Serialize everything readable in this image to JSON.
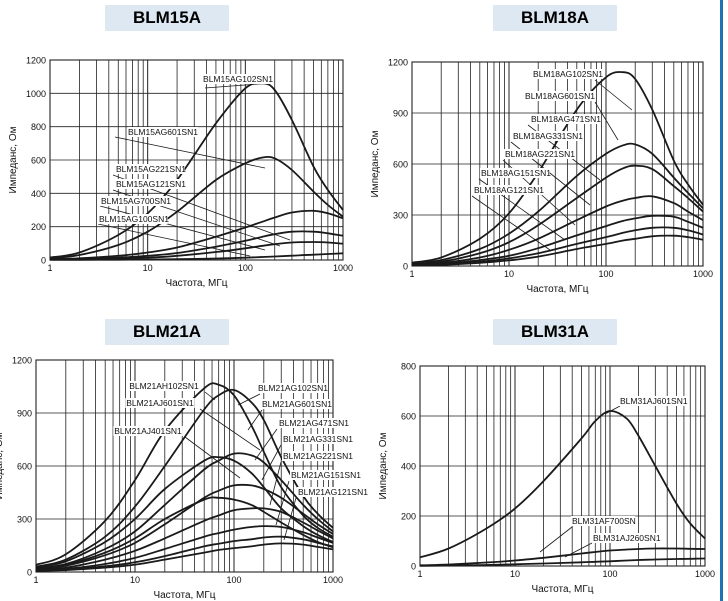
{
  "colors": {
    "tab_bg": "#dde8f2",
    "curve": "#1a1a1a",
    "grid": "#222222",
    "edge_bar": "#1e74b3"
  },
  "charts": [
    {
      "tab": "BLM15A",
      "ylabel": "Импеданс, Ом",
      "xlabel": "Частота, МГц",
      "yticks": [
        "0",
        "200",
        "400",
        "600",
        "800",
        "1000",
        "1200"
      ],
      "xticks": [
        "1",
        "10",
        "100",
        "1000"
      ],
      "labels": [
        "BLM15AG102SN1",
        "BLM15AG601SN1",
        "BLM15AG221SN1",
        "BLM15AG121SN1",
        "BLM15AG700SN1",
        "BLM15AG100SN1"
      ]
    },
    {
      "tab": "BLM18A",
      "ylabel": "Импеданс, Ом",
      "xlabel": "Частота, МГц",
      "yticks": [
        "0",
        "300",
        "600",
        "900",
        "1200"
      ],
      "xticks": [
        "1",
        "10",
        "100",
        "1000"
      ],
      "labels": [
        "BLM18AG102SN1",
        "BLM18AG601SN1",
        "BLM18AG471SN1",
        "BLM18AG331SN1",
        "BLM18AG221SN1",
        "BLM18AG151SN1",
        "BLM18AG121SN1"
      ]
    },
    {
      "tab": "BLM21A",
      "ylabel": "Импеданс, Ом",
      "xlabel": "Частота, МГц",
      "yticks": [
        "0",
        "300",
        "600",
        "900",
        "1200"
      ],
      "xticks": [
        "1",
        "10",
        "100",
        "1000"
      ],
      "labels": [
        "BLM21AH102SN1",
        "BLM21AJ601SN1",
        "BLM21AJ401SN1",
        "BLM21AG102SN1",
        "BLM21AG601SN1",
        "BLM21AG471SN1",
        "BLM21AG331SN1",
        "BLM21AG221SN1",
        "BLM21AG151SN1",
        "BLM21AG121SN1"
      ]
    },
    {
      "tab": "BLM31A",
      "ylabel": "Импеданс, Ом",
      "xlabel": "Частота, МГц",
      "yticks": [
        "0",
        "200",
        "400",
        "600",
        "800"
      ],
      "xticks": [
        "1",
        "10",
        "100",
        "1000"
      ],
      "labels": [
        "BLM31AJ601SN1",
        "BLM31AF700SN",
        "BLM31AJ260SN1"
      ]
    }
  ],
  "chart_data": [
    {
      "type": "line",
      "title": "BLM15A",
      "xscale": "log",
      "xlim": [
        1,
        1000
      ],
      "ylim": [
        0,
        1200
      ],
      "xlabel": "Частота, МГц",
      "ylabel": "Импеданс, Ом",
      "grid": true,
      "x": [
        1,
        2,
        5,
        10,
        20,
        50,
        100,
        150,
        200,
        300,
        500,
        700,
        1000
      ],
      "series": [
        {
          "name": "BLM15AG102SN1",
          "values": [
            15,
            45,
            150,
            280,
            480,
            820,
            1030,
            1060,
            1020,
            840,
            560,
            420,
            300
          ]
        },
        {
          "name": "BLM15AG601SN1",
          "values": [
            10,
            30,
            90,
            170,
            290,
            480,
            580,
            615,
            610,
            540,
            410,
            330,
            260
          ]
        },
        {
          "name": "BLM15AG221SN1",
          "values": [
            5,
            10,
            25,
            45,
            75,
            140,
            195,
            230,
            255,
            285,
            295,
            280,
            250
          ]
        },
        {
          "name": "BLM15AG121SN1",
          "values": [
            4,
            6,
            14,
            25,
            42,
            80,
            115,
            140,
            155,
            170,
            170,
            160,
            145
          ]
        },
        {
          "name": "BLM15AG700SN1",
          "values": [
            3,
            4,
            8,
            14,
            25,
            48,
            70,
            85,
            95,
            105,
            108,
            105,
            98
          ]
        },
        {
          "name": "BLM15AG100SN1",
          "values": [
            1,
            1,
            2,
            3,
            5,
            9,
            14,
            18,
            21,
            26,
            32,
            36,
            40
          ]
        }
      ]
    },
    {
      "type": "line",
      "title": "BLM18A",
      "xscale": "log",
      "xlim": [
        1,
        1000
      ],
      "ylim": [
        0,
        1200
      ],
      "xlabel": "Частота, МГц",
      "ylabel": "Импеданс, Ом",
      "grid": true,
      "x": [
        1,
        2,
        5,
        10,
        20,
        50,
        100,
        150,
        200,
        300,
        500,
        700,
        1000
      ],
      "series": [
        {
          "name": "BLM18AG102SN1",
          "values": [
            20,
            50,
            160,
            310,
            550,
            920,
            1110,
            1140,
            1100,
            920,
            620,
            480,
            360
          ]
        },
        {
          "name": "BLM18AG601SN1",
          "values": [
            15,
            35,
            100,
            190,
            320,
            530,
            660,
            710,
            715,
            660,
            520,
            430,
            340
          ]
        },
        {
          "name": "BLM18AG471SN1",
          "values": [
            12,
            25,
            75,
            140,
            240,
            400,
            520,
            575,
            590,
            570,
            470,
            400,
            320
          ]
        },
        {
          "name": "BLM18AG331SN1",
          "values": [
            10,
            18,
            50,
            95,
            160,
            270,
            350,
            385,
            400,
            410,
            370,
            320,
            270
          ]
        },
        {
          "name": "BLM18AG221SN1",
          "values": [
            8,
            12,
            35,
            60,
            105,
            180,
            235,
            265,
            280,
            295,
            290,
            260,
            225
          ]
        },
        {
          "name": "BLM18AG151SN1",
          "values": [
            6,
            9,
            25,
            45,
            75,
            130,
            170,
            195,
            210,
            225,
            225,
            210,
            185
          ]
        },
        {
          "name": "BLM18AG121SN1",
          "values": [
            5,
            7,
            18,
            33,
            55,
            100,
            130,
            150,
            160,
            175,
            178,
            170,
            155
          ]
        }
      ]
    },
    {
      "type": "line",
      "title": "BLM21A",
      "xscale": "log",
      "xlim": [
        1,
        1000
      ],
      "ylim": [
        0,
        1200
      ],
      "xlabel": "Частота, МГц",
      "ylabel": "Импеданс, Ом",
      "grid": true,
      "x": [
        1,
        2,
        5,
        10,
        20,
        50,
        70,
        100,
        150,
        200,
        300,
        500,
        700,
        1000
      ],
      "series": [
        {
          "name": "BLM21AH102SN1",
          "values": [
            40,
            100,
            290,
            520,
            800,
            1040,
            1060,
            1000,
            830,
            680,
            480,
            320,
            250,
            200
          ]
        },
        {
          "name": "BLM21AG102SN1",
          "values": [
            30,
            70,
            200,
            370,
            600,
            920,
            1000,
            1030,
            960,
            860,
            650,
            430,
            330,
            250
          ]
        },
        {
          "name": "BLM21AJ601SN1",
          "values": [
            25,
            60,
            170,
            300,
            470,
            630,
            650,
            630,
            560,
            480,
            360,
            260,
            210,
            170
          ]
        },
        {
          "name": "BLM21AG601SN1",
          "values": [
            20,
            45,
            130,
            230,
            380,
            580,
            630,
            670,
            660,
            620,
            520,
            380,
            300,
            230
          ]
        },
        {
          "name": "BLM21AJ401SN1",
          "values": [
            18,
            40,
            110,
            190,
            300,
            410,
            420,
            410,
            380,
            340,
            280,
            210,
            170,
            140
          ]
        },
        {
          "name": "BLM21AG471SN1",
          "values": [
            15,
            35,
            95,
            165,
            270,
            420,
            460,
            490,
            490,
            470,
            420,
            330,
            270,
            215
          ]
        },
        {
          "name": "BLM21AG331SN1",
          "values": [
            12,
            25,
            70,
            120,
            190,
            290,
            320,
            350,
            360,
            360,
            340,
            280,
            235,
            190
          ]
        },
        {
          "name": "BLM21AG221SN1",
          "values": [
            10,
            18,
            45,
            80,
            130,
            200,
            220,
            240,
            255,
            260,
            255,
            225,
            195,
            165
          ]
        },
        {
          "name": "BLM21AG151SN1",
          "values": [
            8,
            14,
            32,
            55,
            90,
            145,
            160,
            175,
            185,
            195,
            200,
            185,
            165,
            145
          ]
        },
        {
          "name": "BLM21AG121SN1",
          "values": [
            7,
            11,
            25,
            42,
            70,
            110,
            125,
            135,
            145,
            155,
            162,
            155,
            142,
            128
          ]
        }
      ]
    },
    {
      "type": "line",
      "title": "BLM31A",
      "xscale": "log",
      "xlim": [
        1,
        1000
      ],
      "ylim": [
        0,
        800
      ],
      "xlabel": "Частота, МГц",
      "ylabel": "Импеданс, Ом",
      "grid": true,
      "x": [
        1,
        2,
        5,
        10,
        20,
        50,
        70,
        100,
        150,
        200,
        300,
        500,
        700,
        1000
      ],
      "series": [
        {
          "name": "BLM31AJ601SN1",
          "values": [
            35,
            70,
            150,
            230,
            340,
            510,
            580,
            620,
            590,
            520,
            400,
            250,
            170,
            110
          ]
        },
        {
          "name": "BLM31AF700SN",
          "values": [
            3,
            6,
            14,
            22,
            33,
            50,
            56,
            62,
            66,
            68,
            70,
            70,
            69,
            68
          ]
        },
        {
          "name": "BLM31AJ260SN1",
          "values": [
            1,
            2,
            4,
            7,
            10,
            15,
            17,
            19,
            22,
            24,
            26,
            28,
            29,
            30
          ]
        }
      ]
    }
  ]
}
